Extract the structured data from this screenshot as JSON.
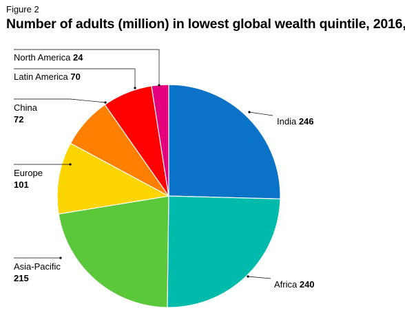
{
  "figure_label": "Figure 2",
  "title": "Number of adults (million) in lowest global wealth quintile, 2016,",
  "chart_data": {
    "type": "pie",
    "title": "Number of adults (million) in lowest global wealth quintile, 2016,",
    "slices": [
      {
        "label": "India",
        "value": 246,
        "color": "#0A73C8"
      },
      {
        "label": "Africa",
        "value": 240,
        "color": "#00BBAC"
      },
      {
        "label": "Asia-Pacific",
        "value": 215,
        "color": "#5AC83A"
      },
      {
        "label": "Europe",
        "value": 101,
        "color": "#FFD500"
      },
      {
        "label": "China",
        "value": 72,
        "color": "#FF8000"
      },
      {
        "label": "Latin America",
        "value": 70,
        "color": "#FF0000"
      },
      {
        "label": "North America",
        "value": 24,
        "color": "#E5007D"
      }
    ],
    "start_angle": "12 o'clock",
    "direction": "clockwise",
    "legend": "none"
  }
}
